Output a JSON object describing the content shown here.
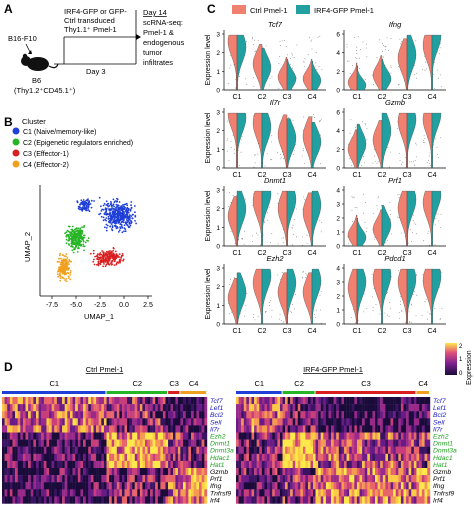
{
  "panelA": {
    "label": "A",
    "cell_line": "B16-F10",
    "transduction_text": [
      "IRF4-GFP or GFP-",
      "Ctrl transduced",
      "Thy1.1⁺ Pmel-1"
    ],
    "mouse": [
      "B6",
      "(Thy1.2⁺CD45.1⁺)"
    ],
    "day3": "Day 3",
    "day14": "Day 14",
    "readout": [
      "scRNA-seq:",
      "Pmel-1 &",
      "endogenous",
      "tumor",
      "infiltrates"
    ]
  },
  "panelB": {
    "label": "B",
    "legend_title": "Cluster",
    "clusters": [
      {
        "id": "C1",
        "desc": "C1 (Naive/memory-like)",
        "color": "#1f3fd6"
      },
      {
        "id": "C2",
        "desc": "C2 (Epigenetic regulators enriched)",
        "color": "#25b525"
      },
      {
        "id": "C3",
        "desc": "C3 (Effector-1)",
        "color": "#d92020"
      },
      {
        "id": "C4",
        "desc": "C4 (Effector-2)",
        "color": "#f0a020"
      }
    ],
    "xlabel": "UMAP_1",
    "ylabel": "UMAP_2",
    "xticks": [
      "-7.5",
      "-5.0",
      "-2.5",
      "0.0",
      "2.5"
    ]
  },
  "panelC": {
    "label": "C",
    "legend": [
      {
        "name": "Ctrl Pmel-1",
        "color": "#f08070"
      },
      {
        "name": "IRF4-GFP Pmel-1",
        "color": "#20a0a0"
      }
    ],
    "ylabel": "Expression level",
    "xcats": [
      "C1",
      "C2",
      "C3",
      "C4"
    ],
    "violins": [
      {
        "gene": "Tcf7",
        "yticks": [
          "0",
          "1",
          "2",
          "3"
        ],
        "ymax": 3,
        "ctrl": [
          2.6,
          1.4,
          0.7,
          0.6
        ],
        "irf": [
          2.3,
          1.2,
          0.6,
          0.5
        ]
      },
      {
        "gene": "Ifng",
        "yticks": [
          "0",
          "2",
          "4",
          "6"
        ],
        "ymax": 6,
        "ctrl": [
          0.8,
          1.6,
          3.4,
          4.8
        ],
        "irf": [
          0.5,
          1.2,
          3.8,
          5.8
        ]
      },
      {
        "gene": "Il7r",
        "yticks": [
          "0",
          "1",
          "2",
          "3"
        ],
        "ymax": 3,
        "ctrl": [
          2.9,
          2.4,
          1.8,
          1.7
        ],
        "irf": [
          2.7,
          2.2,
          1.6,
          1.4
        ]
      },
      {
        "gene": "Gzmb",
        "yticks": [
          "0",
          "2",
          "4",
          "6"
        ],
        "ymax": 6,
        "ctrl": [
          2.0,
          3.0,
          5.0,
          5.2
        ],
        "irf": [
          2.6,
          4.0,
          5.2,
          5.8
        ]
      },
      {
        "gene": "Dnmt1",
        "yticks": [
          "0",
          "1",
          "2",
          "3"
        ],
        "ymax": 3,
        "ctrl": [
          1.6,
          2.4,
          2.0,
          1.8
        ],
        "irf": [
          2.0,
          2.8,
          2.5,
          2.2
        ]
      },
      {
        "gene": "Prf1",
        "yticks": [
          "0",
          "1",
          "2",
          "3",
          "4"
        ],
        "ymax": 4,
        "ctrl": [
          0.8,
          1.2,
          2.7,
          3.1
        ],
        "irf": [
          0.6,
          1.5,
          3.3,
          3.7
        ]
      },
      {
        "gene": "Ezh2",
        "yticks": [
          "0",
          "1",
          "2",
          "3"
        ],
        "ymax": 3,
        "ctrl": [
          1.4,
          2.2,
          1.7,
          1.7
        ],
        "irf": [
          1.7,
          2.6,
          2.2,
          2.3
        ]
      },
      {
        "gene": "Pdcd1",
        "yticks": [
          "0",
          "1",
          "2",
          "3",
          "4"
        ],
        "ymax": 4,
        "ctrl": [
          2.6,
          3.2,
          3.0,
          3.1
        ],
        "irf": [
          3.0,
          3.5,
          3.2,
          3.4
        ]
      }
    ]
  },
  "panelD": {
    "label": "D",
    "groups": [
      {
        "name": "Ctrl Pmel-1",
        "clusters": [
          {
            "id": "C1",
            "frac": 0.51,
            "color": "#1f3fd6"
          },
          {
            "id": "C2",
            "frac": 0.3,
            "color": "#25b525"
          },
          {
            "id": "C3",
            "frac": 0.06,
            "color": "#d92020"
          },
          {
            "id": "C4",
            "frac": 0.13,
            "color": "#f0a020"
          }
        ]
      },
      {
        "name": "IRF4-GFP Pmel-1",
        "clusters": [
          {
            "id": "C1",
            "frac": 0.24,
            "color": "#1f3fd6"
          },
          {
            "id": "C2",
            "frac": 0.17,
            "color": "#25b525"
          },
          {
            "id": "C3",
            "frac": 0.52,
            "color": "#d92020"
          },
          {
            "id": "C4",
            "frac": 0.07,
            "color": "#f0a020"
          }
        ]
      }
    ],
    "genes": [
      {
        "name": "Tcf7",
        "color": "#2020c0"
      },
      {
        "name": "Lef1",
        "color": "#2020c0"
      },
      {
        "name": "Bcl2",
        "color": "#2020c0"
      },
      {
        "name": "Sell",
        "color": "#2020c0"
      },
      {
        "name": "Il7r",
        "color": "#2020c0"
      },
      {
        "name": "Ezh2",
        "color": "#20a020"
      },
      {
        "name": "Dnmt1",
        "color": "#20a020"
      },
      {
        "name": "Dnmt3a",
        "color": "#20a020"
      },
      {
        "name": "Hdac1",
        "color": "#20a020"
      },
      {
        "name": "Hat1",
        "color": "#20a020"
      },
      {
        "name": "Gzmb",
        "color": "#000000"
      },
      {
        "name": "Prf1",
        "color": "#000000"
      },
      {
        "name": "Ifng",
        "color": "#000000"
      },
      {
        "name": "Tnfrsf9",
        "color": "#000000"
      },
      {
        "name": "Irf4",
        "color": "#000000"
      }
    ],
    "colorbar_label": "Expression",
    "colorbar_ticks": [
      "2",
      "1",
      "0"
    ]
  }
}
